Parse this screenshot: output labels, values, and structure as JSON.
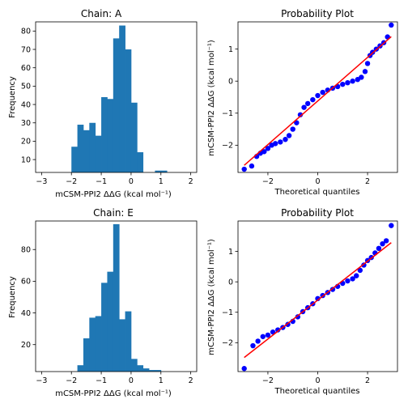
{
  "figure_background": "#ffffff",
  "colors": {
    "bar": "#1f77b4",
    "point": "#0000ff",
    "fit_line": "#ff0000"
  },
  "chart_data": [
    {
      "id": "hist_a",
      "type": "bar",
      "title": "Chain: A",
      "xlabel": "mCSM-PPI2 ΔΔG (kcal mol⁻¹)",
      "ylabel": "Frequency",
      "xlim": [
        -3.2,
        2.2
      ],
      "ylim": [
        3,
        85
      ],
      "xticks": [
        -3,
        -2,
        -1,
        0,
        1,
        2
      ],
      "yticks": [
        10,
        20,
        30,
        40,
        50,
        60,
        70,
        80
      ],
      "bin_edges": [
        -2.2,
        -2.0,
        -1.8,
        -1.6,
        -1.4,
        -1.2,
        -1.0,
        -0.8,
        -0.6,
        -0.4,
        -0.2,
        0.0,
        0.2,
        0.4,
        0.6,
        0.8,
        1.0,
        1.2
      ],
      "values": [
        3,
        17,
        29,
        26,
        30,
        23,
        44,
        43,
        76,
        83,
        70,
        41,
        14,
        3,
        3,
        4,
        4
      ]
    },
    {
      "id": "qq_a",
      "type": "scatter",
      "title": "Probability Plot",
      "xlabel": "Theoretical quantiles",
      "ylabel": "mCSM-PPI2 ΔΔG (kcal mol⁻¹)",
      "xlim": [
        -3.2,
        3.2
      ],
      "ylim": [
        -2.85,
        1.85
      ],
      "xticks": [
        -2,
        0,
        2
      ],
      "yticks": [
        -2,
        -1,
        0,
        1
      ],
      "fit_line": {
        "slope": 0.68,
        "intercept": -0.62
      },
      "points": [
        [
          -2.95,
          -2.75
        ],
        [
          -2.65,
          -2.65
        ],
        [
          -2.45,
          -2.35
        ],
        [
          -2.3,
          -2.25
        ],
        [
          -2.15,
          -2.2
        ],
        [
          -2.0,
          -2.1
        ],
        [
          -1.85,
          -2.0
        ],
        [
          -1.7,
          -1.95
        ],
        [
          -1.5,
          -1.9
        ],
        [
          -1.3,
          -1.82
        ],
        [
          -1.15,
          -1.7
        ],
        [
          -1.0,
          -1.5
        ],
        [
          -0.85,
          -1.3
        ],
        [
          -0.7,
          -1.05
        ],
        [
          -0.55,
          -0.82
        ],
        [
          -0.4,
          -0.7
        ],
        [
          -0.2,
          -0.58
        ],
        [
          0.0,
          -0.45
        ],
        [
          0.2,
          -0.35
        ],
        [
          0.4,
          -0.28
        ],
        [
          0.6,
          -0.22
        ],
        [
          0.8,
          -0.17
        ],
        [
          1.0,
          -0.1
        ],
        [
          1.2,
          -0.05
        ],
        [
          1.4,
          0.0
        ],
        [
          1.6,
          0.05
        ],
        [
          1.75,
          0.12
        ],
        [
          1.9,
          0.3
        ],
        [
          2.0,
          0.55
        ],
        [
          2.1,
          0.8
        ],
        [
          2.2,
          0.9
        ],
        [
          2.35,
          1.0
        ],
        [
          2.5,
          1.1
        ],
        [
          2.65,
          1.2
        ],
        [
          2.8,
          1.38
        ],
        [
          2.95,
          1.75
        ]
      ]
    },
    {
      "id": "hist_e",
      "type": "bar",
      "title": "Chain: E",
      "xlabel": "mCSM-PPI2 ΔΔG (kcal mol⁻¹)",
      "ylabel": "Frequency",
      "xlim": [
        -3.2,
        2.2
      ],
      "ylim": [
        3,
        98
      ],
      "xticks": [
        -3,
        -2,
        -1,
        0,
        1,
        2
      ],
      "yticks": [
        20,
        40,
        60,
        80
      ],
      "bin_edges": [
        -2.0,
        -1.8,
        -1.6,
        -1.4,
        -1.2,
        -1.0,
        -0.8,
        -0.6,
        -0.4,
        -0.2,
        0.0,
        0.2,
        0.4,
        0.6,
        0.8,
        1.0,
        1.2
      ],
      "values": [
        3,
        7,
        24,
        37,
        38,
        59,
        66,
        96,
        36,
        41,
        11,
        7,
        5,
        4,
        4,
        3
      ]
    },
    {
      "id": "qq_e",
      "type": "scatter",
      "title": "Probability Plot",
      "xlabel": "Theoretical quantiles",
      "ylabel": "mCSM-PPI2 ΔΔG (kcal mol⁻¹)",
      "xlim": [
        -3.2,
        3.2
      ],
      "ylim": [
        -2.95,
        2.0
      ],
      "xticks": [
        -2,
        0,
        2
      ],
      "yticks": [
        -2,
        -1,
        0,
        1
      ],
      "fit_line": {
        "slope": 0.64,
        "intercept": -0.6
      },
      "points": [
        [
          -2.95,
          -2.85
        ],
        [
          -2.6,
          -2.1
        ],
        [
          -2.4,
          -1.95
        ],
        [
          -2.2,
          -1.8
        ],
        [
          -2.0,
          -1.75
        ],
        [
          -1.8,
          -1.65
        ],
        [
          -1.6,
          -1.58
        ],
        [
          -1.4,
          -1.5
        ],
        [
          -1.2,
          -1.4
        ],
        [
          -1.0,
          -1.3
        ],
        [
          -0.8,
          -1.15
        ],
        [
          -0.6,
          -0.98
        ],
        [
          -0.4,
          -0.85
        ],
        [
          -0.2,
          -0.72
        ],
        [
          0.0,
          -0.55
        ],
        [
          0.2,
          -0.45
        ],
        [
          0.4,
          -0.35
        ],
        [
          0.6,
          -0.25
        ],
        [
          0.8,
          -0.15
        ],
        [
          1.0,
          -0.05
        ],
        [
          1.2,
          0.03
        ],
        [
          1.4,
          0.1
        ],
        [
          1.55,
          0.2
        ],
        [
          1.7,
          0.38
        ],
        [
          1.85,
          0.55
        ],
        [
          2.0,
          0.7
        ],
        [
          2.15,
          0.8
        ],
        [
          2.3,
          0.95
        ],
        [
          2.45,
          1.1
        ],
        [
          2.6,
          1.25
        ],
        [
          2.75,
          1.35
        ],
        [
          2.95,
          1.85
        ]
      ]
    }
  ]
}
